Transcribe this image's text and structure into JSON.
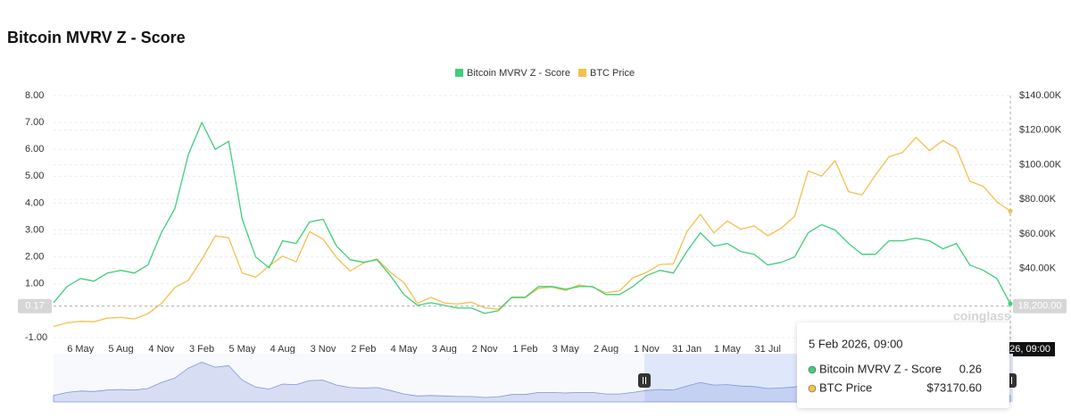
{
  "chart_data": {
    "type": "line",
    "title": "Bitcoin MVRV Z - Score",
    "categories": [
      null,
      null,
      "6 May",
      null,
      null,
      "5 Aug",
      null,
      null,
      "4 Nov",
      null,
      null,
      "3 Feb",
      null,
      null,
      "5 May",
      null,
      null,
      "4 Aug",
      null,
      null,
      "3 Nov",
      null,
      null,
      "2 Feb",
      null,
      null,
      "4 May",
      null,
      null,
      "3 Aug",
      null,
      null,
      "2 Nov",
      null,
      null,
      "1 Feb",
      null,
      null,
      "3 May",
      null,
      null,
      "2 Aug",
      null,
      null,
      "1 Nov",
      null,
      null,
      "31 Jan",
      null,
      null,
      "1 May",
      null,
      null,
      "31 Jul",
      null,
      null,
      null,
      null,
      null,
      null,
      null,
      null,
      null,
      null,
      null,
      null,
      null,
      null,
      null,
      null,
      null,
      null
    ],
    "series": [
      {
        "name": "Bitcoin MVRV Z - Score",
        "color": "#3ecf7a",
        "values": [
          0.3,
          0.9,
          1.2,
          1.1,
          1.4,
          1.5,
          1.4,
          1.7,
          2.9,
          3.8,
          5.8,
          7.0,
          6.0,
          6.3,
          3.4,
          2.0,
          1.6,
          2.6,
          2.5,
          3.3,
          3.4,
          2.4,
          1.9,
          1.8,
          1.9,
          1.3,
          0.6,
          0.2,
          0.3,
          0.2,
          0.1,
          0.1,
          -0.1,
          0.0,
          0.5,
          0.5,
          0.9,
          0.9,
          0.8,
          0.9,
          0.9,
          0.6,
          0.6,
          0.9,
          1.3,
          1.5,
          1.4,
          2.2,
          2.9,
          2.4,
          2.5,
          2.2,
          2.1,
          1.7,
          1.8,
          2.0,
          2.9,
          3.2,
          3.0,
          2.5,
          2.1,
          2.1,
          2.6,
          2.6,
          2.7,
          2.6,
          2.3,
          2.5,
          1.7,
          1.5,
          1.2,
          0.26
        ],
        "value_labels": [
          null,
          null,
          null,
          null,
          null,
          null,
          null,
          null,
          null,
          null,
          null,
          null,
          null,
          null,
          null,
          null,
          null,
          null,
          null,
          null,
          null,
          null,
          null,
          null,
          null,
          null,
          null,
          null,
          null,
          null,
          null,
          null,
          null,
          null,
          null,
          null,
          null,
          null,
          null,
          null,
          null,
          null,
          null,
          null,
          null,
          null,
          null,
          null,
          null,
          null,
          null,
          null,
          null,
          null,
          null,
          null,
          null,
          null,
          null,
          null,
          null,
          null,
          null,
          null,
          null,
          null,
          null,
          null,
          null,
          null,
          null,
          "0.26"
        ]
      },
      {
        "name": "BTC Price",
        "color": "#f2c14e",
        "axis": "y2",
        "values": [
          6400,
          8600,
          9400,
          9200,
          11300,
          11700,
          10800,
          13800,
          19700,
          29000,
          33100,
          45200,
          58800,
          57700,
          37300,
          35000,
          41500,
          47100,
          43800,
          61300,
          57000,
          46300,
          38500,
          43200,
          45500,
          37700,
          31800,
          19800,
          23300,
          20000,
          19400,
          20500,
          17200,
          16500,
          23100,
          23100,
          28500,
          29200,
          27200,
          30500,
          29200,
          26000,
          27000,
          34600,
          37700,
          42300,
          42600,
          61200,
          71300,
          60600,
          67500,
          62700,
          64600,
          58900,
          63300,
          70200,
          96400,
          93400,
          102400,
          84400,
          82500,
          94200,
          104600,
          107100,
          115800,
          108200,
          114000,
          109500,
          90400,
          87500,
          78600,
          73170.6
        ],
        "value_labels": [
          null,
          null,
          null,
          null,
          null,
          null,
          null,
          null,
          null,
          null,
          null,
          null,
          null,
          null,
          null,
          null,
          null,
          null,
          null,
          null,
          null,
          null,
          null,
          null,
          null,
          null,
          null,
          null,
          null,
          null,
          null,
          null,
          null,
          null,
          null,
          null,
          null,
          null,
          null,
          null,
          null,
          null,
          null,
          null,
          null,
          null,
          null,
          null,
          null,
          null,
          null,
          null,
          null,
          null,
          null,
          null,
          null,
          null,
          null,
          null,
          null,
          null,
          null,
          null,
          null,
          null,
          null,
          null,
          null,
          null,
          null,
          "$73170.60"
        ]
      }
    ],
    "ylim": [
      -1,
      8
    ],
    "yticks": [
      {
        "value": -1,
        "label": "-1.00"
      },
      {
        "value": 1,
        "label": "1.00"
      },
      {
        "value": 2,
        "label": "2.00"
      },
      {
        "value": 3,
        "label": "3.00"
      },
      {
        "value": 4,
        "label": "4.00"
      },
      {
        "value": 5,
        "label": "5.00"
      },
      {
        "value": 6,
        "label": "6.00"
      },
      {
        "value": 7,
        "label": "7.00"
      },
      {
        "value": 8,
        "label": "8.00"
      }
    ],
    "y2lim": [
      0,
      140000
    ],
    "y2ticks": [
      {
        "value": 40000,
        "label": "$40.00K"
      },
      {
        "value": 60000,
        "label": "$60.00K"
      },
      {
        "value": 80000,
        "label": "$80.00K"
      },
      {
        "value": 100000,
        "label": "$100.00K"
      },
      {
        "value": 120000,
        "label": "$120.00K"
      },
      {
        "value": 140000,
        "label": "$140.00K"
      }
    ],
    "grid": true,
    "legend": "top",
    "crosshair": {
      "y": 0.17,
      "y2": {
        "value": 18200,
        "label": "18,200.00"
      },
      "x_label": "5 Feb 2026, 09:00"
    },
    "watermark": "coinglass"
  }
}
